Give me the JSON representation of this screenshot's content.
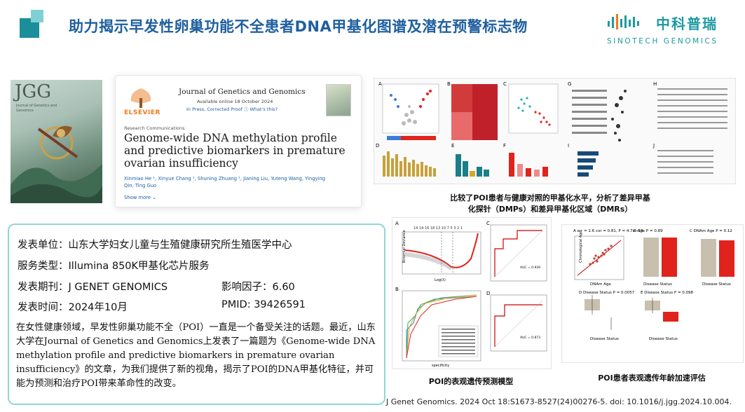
{
  "header": {
    "title": "助力揭示早发性卵巢功能不全患者DNA甲基化图谱及潜在预警标志物",
    "logo_cn": "中科普瑞",
    "logo_en": "SINOTECH GENOMICS"
  },
  "cover": {
    "title": "JGG",
    "subtitle": "Journal of Genetics and Genomics"
  },
  "article": {
    "publisher": "ELSEVIER",
    "journal": "Journal of Genetics and Genomics",
    "available": "Available online 18 October 2024",
    "in_press": "In Press, Corrected Proof",
    "whats_this": "What's this?",
    "section": "Research Communications",
    "title": "Genome-wide DNA methylation profile and predictive biomarkers in premature ovarian insufficiency",
    "authors": "Xinmiao He ¹, Xinyue Chang ¹, Shuning Zhuang ¹, Jianing Liu, Yuteng Wang, Yingying Qin, Ting Guo",
    "show_more": "Show more"
  },
  "info": {
    "unit_label": "发表单位：",
    "unit_value": "山东大学妇女儿童与生殖健康研究所生殖医学中心",
    "service_label": "服务类型：",
    "service_value": "Illumina 850K甲基化芯片服务",
    "journal_label": "发表期刊：",
    "journal_value": "J GENET GENOMICS",
    "impact_label": "影响因子：",
    "impact_value": "6.60",
    "date_label": "发表时间：",
    "date_value": "2024年10月",
    "pmid_label": "PMID:",
    "pmid_value": "39426591",
    "paragraph": "在女性健康领域，早发性卵巢功能不全（POI）一直是一个备受关注的话题。最近，山东大学在Journal of Genetics and Genomics上发表了一篇题为《Genome-wide DNA methylation profile and predictive biomarkers in premature ovarian insufficiency》的文章，为我们提供了新的视角，揭示了POI的DNA甲基化特征，并可能为预测和治疗POI带来革命性的改变。"
  },
  "figures": {
    "caption_top_1": "比较了POI患者与健康对照的甲基化水平，分析了差异甲基",
    "caption_top_2": "化探针（DMPs）和差异甲基化区域（DMRs）",
    "caption_mid": "POI的表观遗传预测模型",
    "caption_right": "POI患者表观遗传年龄加速评估",
    "panel_letters": [
      "A",
      "B",
      "C",
      "D",
      "E",
      "F",
      "G",
      "H",
      "I",
      "J"
    ],
    "roc_auc_1": "AUC = 0.939",
    "roc_auc_2": "AUC = 0.873",
    "stats_a": "A err = 1.6 cor = 0.81, P = 4.7e−19",
    "stats_b": "B Age P = 0.89",
    "stats_c": "C DNAm Age P = 0.12",
    "stats_d": "D Disease Status P = 0.0057",
    "stats_e": "E Disease Status P = 0.098",
    "xlab_disease": "Disease Status",
    "xlab_dnam": "DNAm Age",
    "ylab_chrono": "Chronological Age",
    "xlab_lambda": "Log(λ)",
    "ylab_binomial": "Binomial Deviance",
    "xlab_spec": "specificity",
    "ylab_sens": "sensitivity",
    "lasso_top": "14 14 16 18 13 10 7 5 3 2 1"
  },
  "citation": "J Genet Genomics. 2024 Oct 18:S1673-8527(24)00276-5. doi: 10.1016/j.jgg.2024.10.004.",
  "colors": {
    "title_blue": "#1f5f9e",
    "teal": "#1d9aa0",
    "box_border": "#8fd6d8",
    "red": "#e0231c"
  }
}
